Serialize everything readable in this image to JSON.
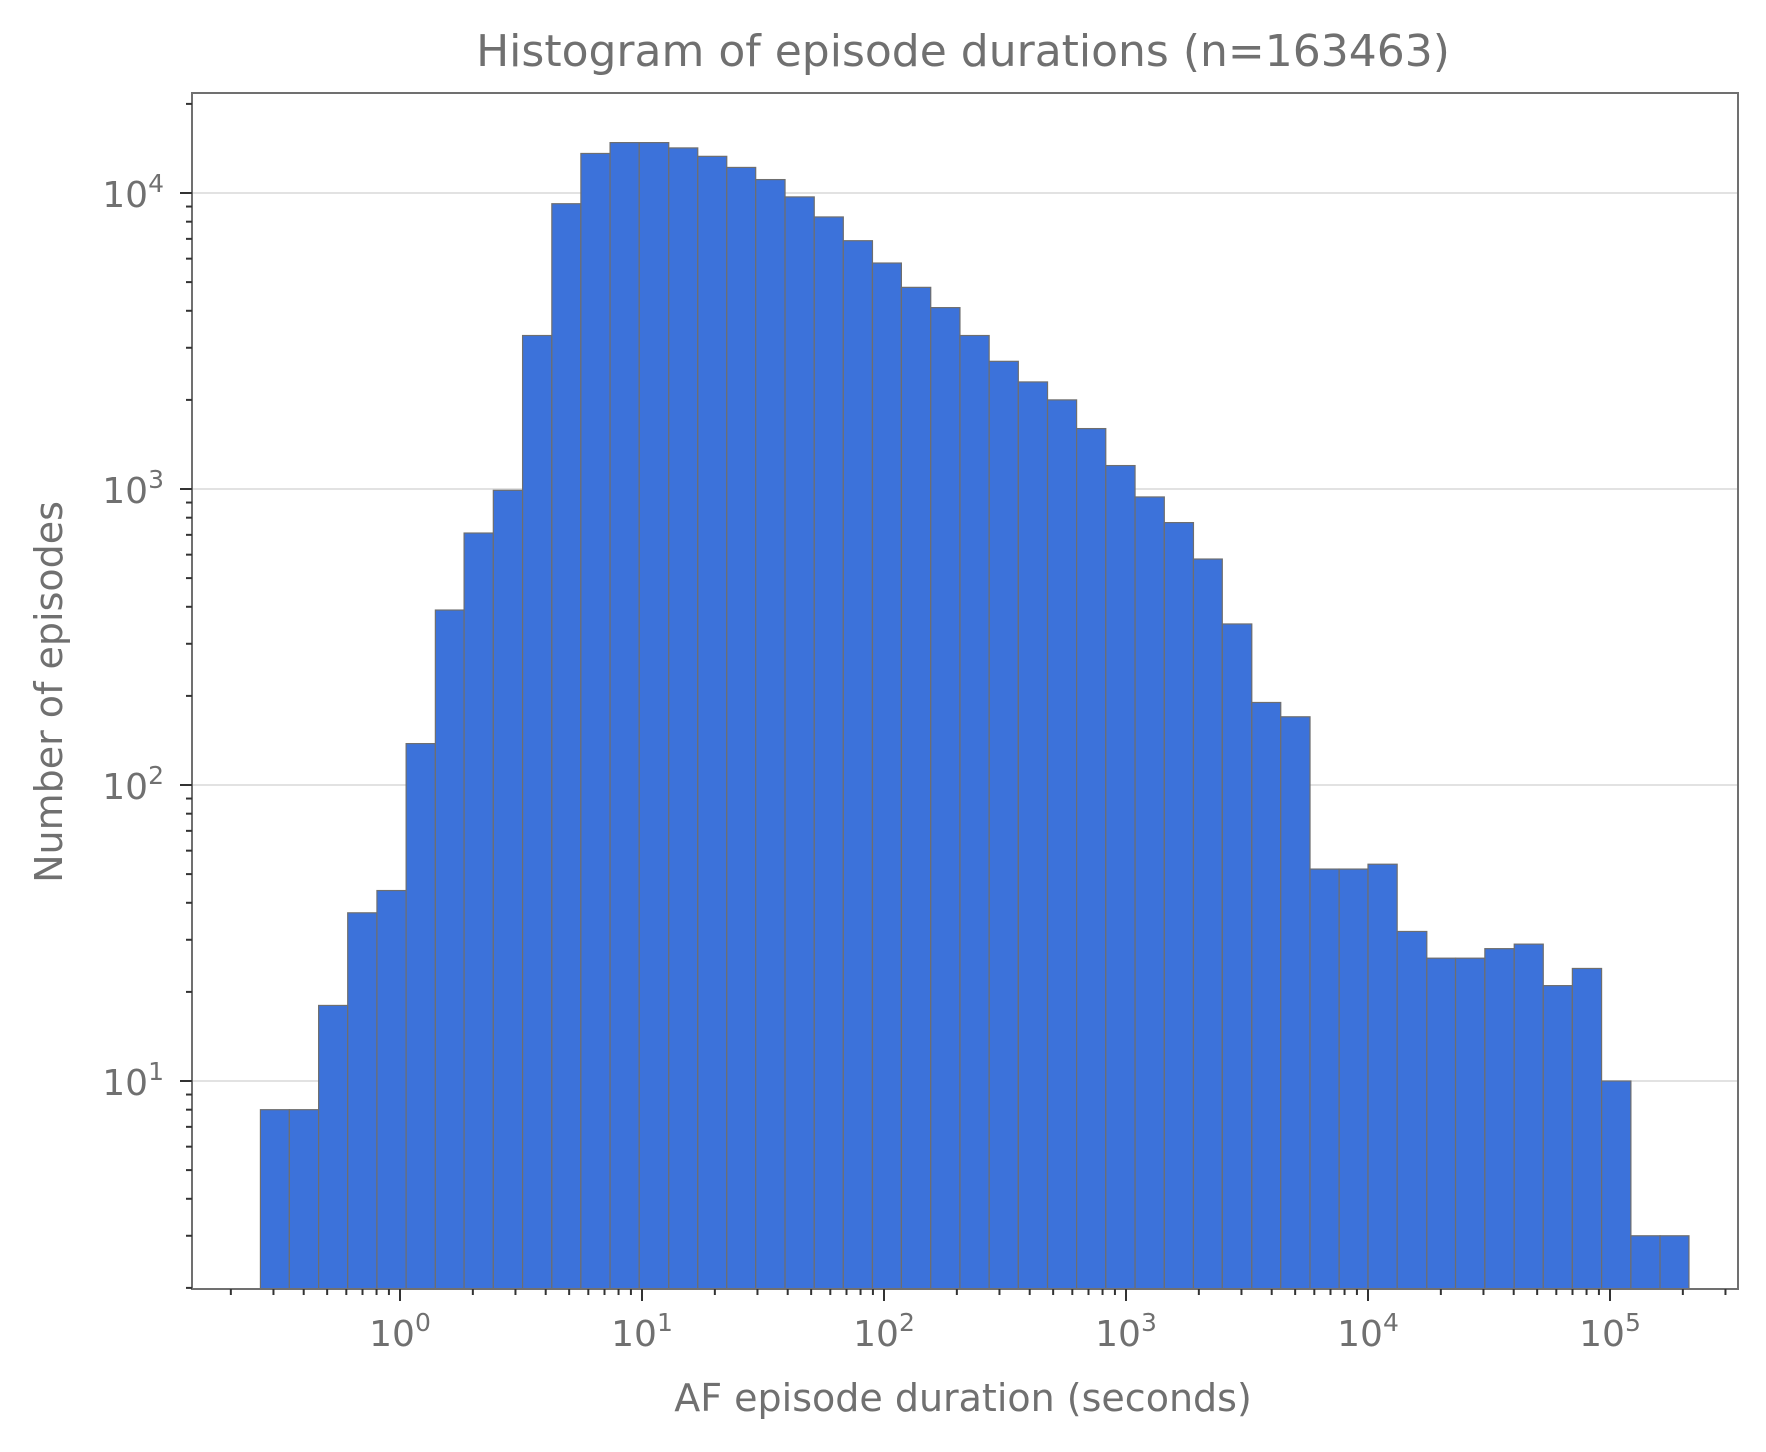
{
  "chart_data": {
    "type": "bar",
    "title": "Histogram of episode durations (n=163463)",
    "xlabel": "AF episode duration (seconds)",
    "ylabel": "Number of episodes",
    "x_scale": "log",
    "y_scale": "log",
    "x_range": [
      0.14,
      400000
    ],
    "y_range": [
      2,
      22000
    ],
    "x_tick_labels": [
      {
        "base": "10",
        "exp": "0",
        "value": 1
      },
      {
        "base": "10",
        "exp": "1",
        "value": 10
      },
      {
        "base": "10",
        "exp": "2",
        "value": 100
      },
      {
        "base": "10",
        "exp": "3",
        "value": 1000
      },
      {
        "base": "10",
        "exp": "4",
        "value": 10000
      },
      {
        "base": "10",
        "exp": "5",
        "value": 100000
      }
    ],
    "y_tick_labels": [
      {
        "base": "10",
        "exp": "1",
        "value": 10
      },
      {
        "base": "10",
        "exp": "2",
        "value": 100
      },
      {
        "base": "10",
        "exp": "3",
        "value": 1000
      },
      {
        "base": "10",
        "exp": "4",
        "value": 10000
      }
    ],
    "grid": "horizontal at major y ticks",
    "bar_color": "#3c72da",
    "edge_color": "#6e6e6e",
    "text_color": "#707070",
    "bin_edges": [
      0.265,
      0.349,
      0.461,
      0.608,
      0.803,
      1.06,
      1.4,
      1.84,
      2.43,
      3.21,
      4.24,
      5.59,
      7.38,
      9.74,
      12.9,
      17.0,
      22.4,
      29.5,
      39.0,
      51.5,
      67.9,
      89.6,
      118,
      156,
      206,
      272,
      359,
      474,
      625,
      825,
      1090,
      1440,
      1900,
      2500,
      3310,
      4360,
      5760,
      7600,
      10000,
      13200,
      17500,
      23000,
      30400,
      40200,
      53000,
      69900,
      92300,
      122000,
      161000,
      212000
    ],
    "counts": [
      8,
      8,
      18,
      37,
      44,
      138,
      390,
      710,
      990,
      3300,
      9200,
      13600,
      14800,
      14800,
      14200,
      13300,
      12200,
      11100,
      9700,
      8300,
      6900,
      5800,
      4800,
      4100,
      3300,
      2700,
      2300,
      2000,
      1600,
      1200,
      940,
      770,
      580,
      350,
      190,
      170,
      52,
      52,
      54,
      32,
      26,
      26,
      28,
      29,
      21,
      24,
      10,
      3,
      3
    ]
  }
}
